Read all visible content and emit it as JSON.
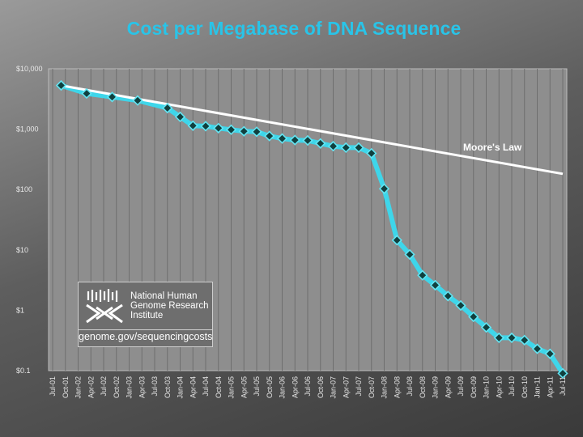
{
  "chart_data": {
    "type": "line",
    "title": "Cost per Megabase of DNA Sequence",
    "y_scale": "log",
    "ylim": [
      0.1,
      10000
    ],
    "y_ticks": [
      "$10,000",
      "$1,000",
      "$100",
      "$10",
      "$1",
      "$0.1"
    ],
    "grid": "vertical lines at each quarter",
    "categories": [
      "Jul-01",
      "Oct-01",
      "Jan-02",
      "Apr-02",
      "Jul-02",
      "Oct-02",
      "Jan-03",
      "Apr-03",
      "Jul-03",
      "Oct-03",
      "Jan-04",
      "Apr-04",
      "Jul-04",
      "Oct-04",
      "Jan-05",
      "Apr-05",
      "Jul-05",
      "Oct-05",
      "Jan-06",
      "Apr-06",
      "Jul-06",
      "Oct-06",
      "Jan-07",
      "Apr-07",
      "Jul-07",
      "Oct-07",
      "Jan-08",
      "Apr-08",
      "Jul-08",
      "Oct-08",
      "Jan-09",
      "Apr-09",
      "Jul-09",
      "Oct-09",
      "Jan-10",
      "Apr-10",
      "Jul-10",
      "Oct-10",
      "Jan-11",
      "Apr-11",
      "Jul-11"
    ],
    "series": [
      {
        "name": "",
        "color": "#3ed6ea",
        "marker": "diamond",
        "points": [
          {
            "x": "Sep-01",
            "y": 5292
          },
          {
            "x": "Mar-02",
            "y": 3899
          },
          {
            "x": "Sep-02",
            "y": 3413
          },
          {
            "x": "Mar-03",
            "y": 2987
          },
          {
            "x": "Oct-03",
            "y": 2230
          },
          {
            "x": "Jan-04",
            "y": 1598
          },
          {
            "x": "Apr-04",
            "y": 1140
          },
          {
            "x": "Jul-04",
            "y": 1120
          },
          {
            "x": "Oct-04",
            "y": 1040
          },
          {
            "x": "Jan-05",
            "y": 980
          },
          {
            "x": "Apr-05",
            "y": 922
          },
          {
            "x": "Jul-05",
            "y": 905
          },
          {
            "x": "Oct-05",
            "y": 770
          },
          {
            "x": "Jan-06",
            "y": 700
          },
          {
            "x": "Apr-06",
            "y": 660
          },
          {
            "x": "Jul-06",
            "y": 650
          },
          {
            "x": "Oct-06",
            "y": 580
          },
          {
            "x": "Jan-07",
            "y": 522
          },
          {
            "x": "Apr-07",
            "y": 495
          },
          {
            "x": "Jul-07",
            "y": 495
          },
          {
            "x": "Oct-07",
            "y": 398
          },
          {
            "x": "Jan-08",
            "y": 103
          },
          {
            "x": "Apr-08",
            "y": 14.5
          },
          {
            "x": "Jul-08",
            "y": 8.4
          },
          {
            "x": "Oct-08",
            "y": 3.8
          },
          {
            "x": "Jan-09",
            "y": 2.6
          },
          {
            "x": "Apr-09",
            "y": 1.72
          },
          {
            "x": "Jul-09",
            "y": 1.2
          },
          {
            "x": "Oct-09",
            "y": 0.78
          },
          {
            "x": "Jan-10",
            "y": 0.52
          },
          {
            "x": "Apr-10",
            "y": 0.35
          },
          {
            "x": "Jul-10",
            "y": 0.35
          },
          {
            "x": "Oct-10",
            "y": 0.32
          },
          {
            "x": "Jan-11",
            "y": 0.23
          },
          {
            "x": "Apr-11",
            "y": 0.19
          },
          {
            "x": "Jul-11",
            "y": 0.09
          }
        ]
      },
      {
        "name": "Moore's Law",
        "color": "#ffffff",
        "points": [
          {
            "x": "Sep-01",
            "y": 5292
          },
          {
            "x": "Jul-11",
            "y": 182
          }
        ]
      }
    ]
  },
  "logo": {
    "name_lines": [
      "National Human",
      "Genome Research",
      "Institute"
    ],
    "url": "genome.gov/sequencingcosts"
  }
}
